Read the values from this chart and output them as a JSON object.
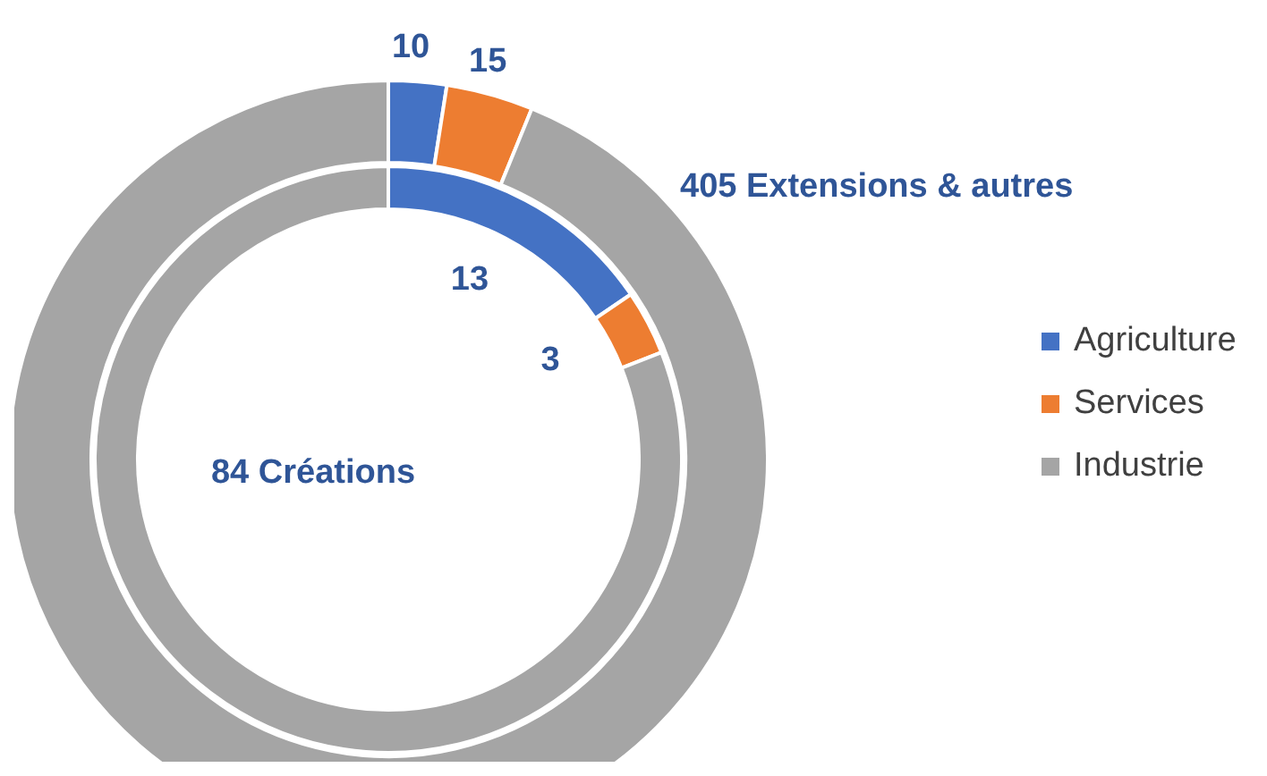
{
  "chart_data": [
    {
      "type": "donut",
      "title": "405 Extensions & autres",
      "categories": [
        "Agriculture",
        "Services",
        "Industrie"
      ],
      "colors": [
        "#4472c4",
        "#ed7d31",
        "#a5a5a5"
      ],
      "values": [
        10,
        15,
        380
      ],
      "value_labels": [
        "10",
        "15",
        null
      ],
      "legend": "right"
    },
    {
      "type": "donut",
      "title": "84 Créations",
      "categories": [
        null,
        null,
        null
      ],
      "colors": [
        "#4472c4",
        "#ed7d31",
        "#a5a5a5"
      ],
      "values": [
        13,
        3,
        68
      ],
      "value_labels": [
        "13",
        "3",
        null
      ]
    }
  ]
}
